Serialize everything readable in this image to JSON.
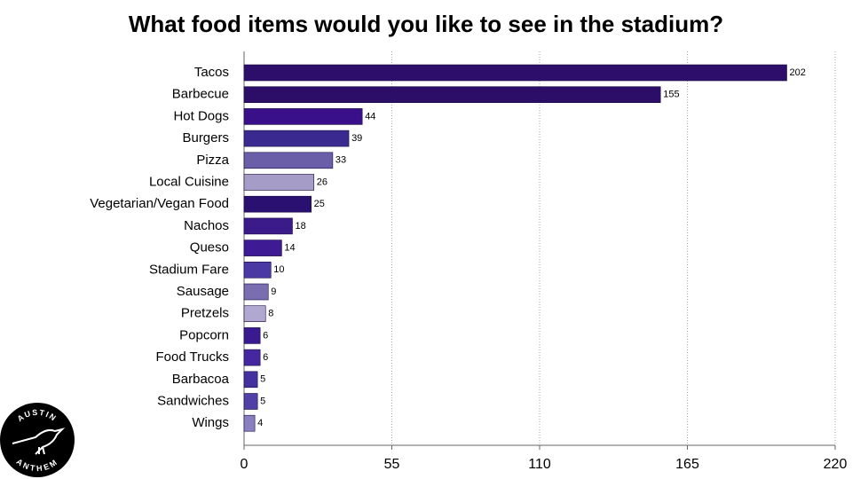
{
  "chart_data": {
    "type": "hbar",
    "title": "What food items would you like to see in the stadium?",
    "categories": [
      "Tacos",
      "Barbecue",
      "Hot Dogs",
      "Burgers",
      "Pizza",
      "Local Cuisine",
      "Vegetarian/Vegan Food",
      "Nachos",
      "Queso",
      "Stadium Fare",
      "Sausage",
      "Pretzels",
      "Popcorn",
      "Food Trucks",
      "Barbacoa",
      "Sandwiches",
      "Wings"
    ],
    "values": [
      202,
      155,
      44,
      39,
      33,
      26,
      25,
      18,
      14,
      10,
      9,
      8,
      6,
      6,
      5,
      5,
      4
    ],
    "colors": [
      "#2d0f6b",
      "#2c0e69",
      "#3a108a",
      "#3a2a8f",
      "#6b5ea8",
      "#a59cc8",
      "#2a1070",
      "#3b1a8a",
      "#3e1a95",
      "#4a38a5",
      "#7a6eb0",
      "#b0a8d0",
      "#3a1a90",
      "#4528a0",
      "#4530a0",
      "#5040a8",
      "#8a80c0"
    ],
    "xlim": [
      0,
      220
    ],
    "xticks": [
      0,
      55,
      110,
      165,
      220
    ],
    "grid": true
  },
  "logo": {
    "top": "AUSTIN",
    "bottom": "ANTHEM"
  }
}
